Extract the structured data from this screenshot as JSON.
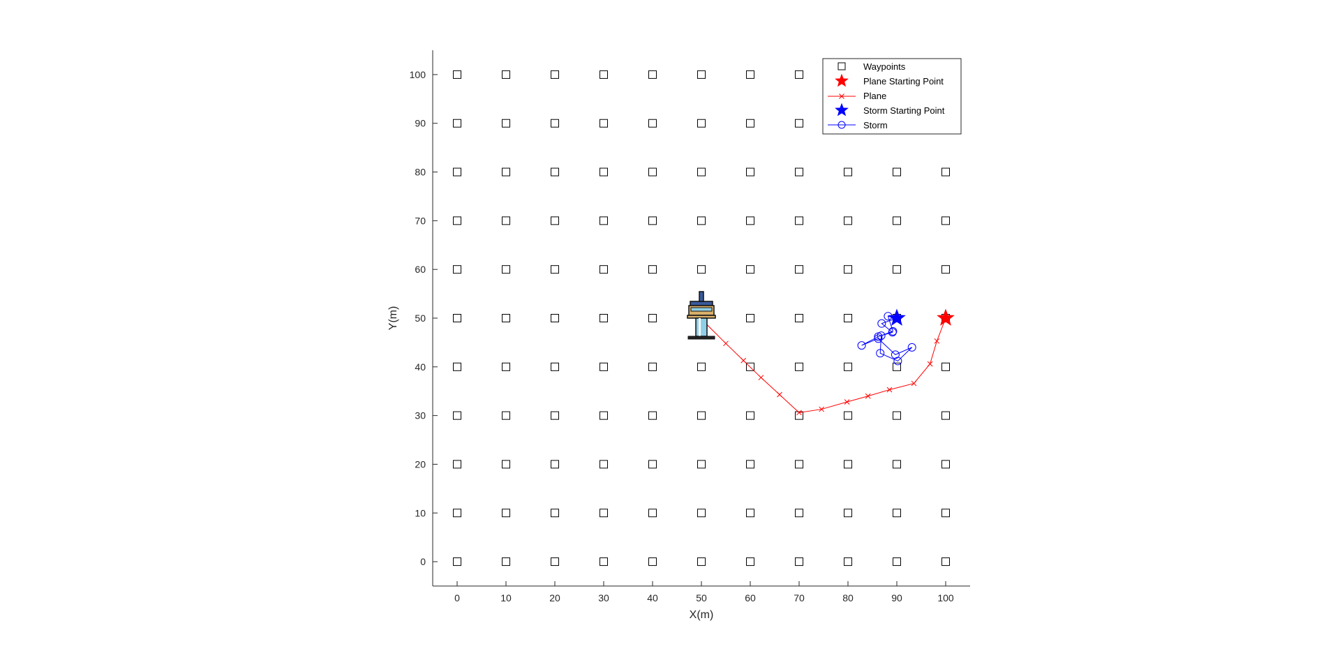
{
  "chart_data": {
    "type": "scatter",
    "title": "",
    "xlabel": "X(m)",
    "ylabel": "Y(m)",
    "xlim": [
      -5,
      105
    ],
    "ylim": [
      -5,
      105
    ],
    "xticks": [
      0,
      10,
      20,
      30,
      40,
      50,
      60,
      70,
      80,
      90,
      100
    ],
    "yticks": [
      0,
      10,
      20,
      30,
      40,
      50,
      60,
      70,
      80,
      90,
      100
    ],
    "xtick_labels": [
      "0",
      "10",
      "20",
      "30",
      "40",
      "50",
      "60",
      "70",
      "80",
      "90",
      "100"
    ],
    "ytick_labels": [
      "0",
      "10",
      "20",
      "30",
      "40",
      "50",
      "60",
      "70",
      "80",
      "90",
      "100"
    ],
    "grid": false,
    "legend_position": "top-right",
    "waypoints": {
      "name": "Waypoints",
      "color": "#000000",
      "marker": "square",
      "x_values": [
        0,
        10,
        20,
        30,
        40,
        50,
        60,
        70,
        80,
        90,
        100
      ],
      "y_values": [
        0,
        10,
        20,
        30,
        40,
        50,
        60,
        70,
        80,
        90,
        100
      ]
    },
    "plane_start": {
      "name": "Plane Starting Point",
      "color": "#ff0000",
      "marker": "star",
      "x": 100,
      "y": 50
    },
    "plane": {
      "name": "Plane",
      "color": "#ff0000",
      "marker": "x",
      "points": [
        [
          100,
          50
        ],
        [
          98.2,
          45.3
        ],
        [
          96.8,
          40.6
        ],
        [
          93.5,
          36.6
        ],
        [
          88.5,
          35.3
        ],
        [
          84.1,
          34.0
        ],
        [
          79.8,
          32.8
        ],
        [
          74.6,
          31.3
        ],
        [
          70.0,
          30.6
        ],
        [
          66.0,
          34.3
        ],
        [
          62.2,
          37.8
        ],
        [
          58.6,
          41.3
        ],
        [
          55.0,
          44.8
        ],
        [
          50.0,
          49.8
        ]
      ]
    },
    "storm_start": {
      "name": "Storm Starting Point",
      "color": "#0000ff",
      "marker": "star",
      "x": 90,
      "y": 50
    },
    "storm": {
      "name": "Storm",
      "color": "#0000ff",
      "marker": "circle",
      "points": [
        [
          90,
          50
        ],
        [
          88.2,
          50.4
        ],
        [
          89.2,
          47.3
        ],
        [
          86.2,
          46.2
        ],
        [
          82.8,
          44.4
        ],
        [
          86.2,
          45.8
        ],
        [
          89.7,
          42.5
        ],
        [
          93.1,
          44.0
        ],
        [
          90.2,
          41.2
        ],
        [
          86.6,
          42.8
        ],
        [
          86.8,
          46.4
        ],
        [
          89.1,
          47.1
        ],
        [
          86.9,
          48.9
        ],
        [
          90.0,
          50.0
        ]
      ]
    },
    "tower_icon": {
      "name": "control-tower-icon",
      "x": 50,
      "y": 50
    }
  }
}
